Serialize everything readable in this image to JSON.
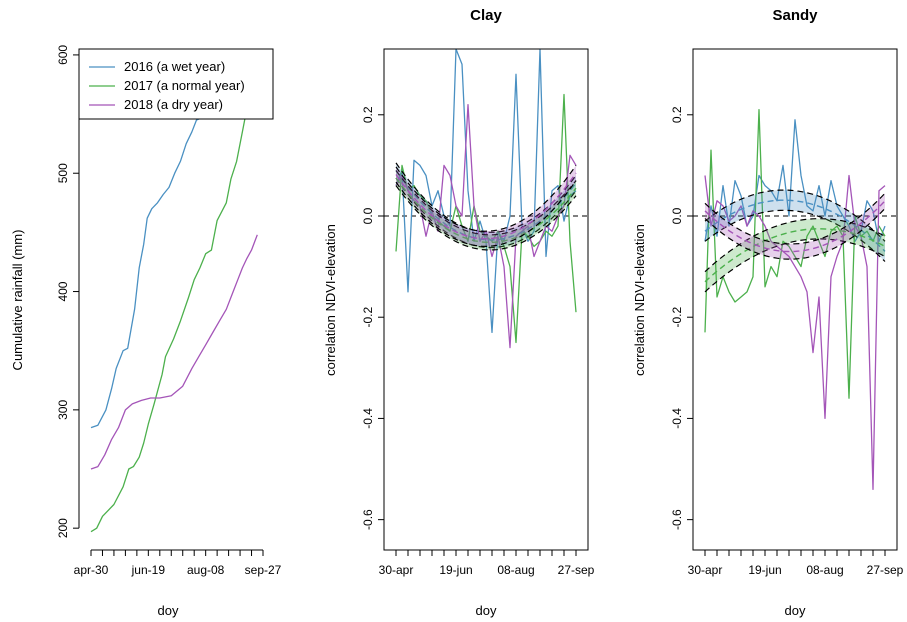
{
  "chart_data": [
    {
      "type": "line",
      "title": "",
      "xlabel": "doy",
      "ylabel": "Cumulative rainfall (mm)",
      "ylim": [
        190,
        605
      ],
      "xlim": [
        0,
        150
      ],
      "xticklabels": [
        "apr-30",
        "jun-19",
        "aug-08",
        "sep-27"
      ],
      "xticklabel_positions": [
        0,
        50,
        100,
        150
      ],
      "xminor_step": 10,
      "yticks": [
        200,
        300,
        400,
        500,
        600
      ],
      "legend": "top-left",
      "series": [
        {
          "name": "2016 (a wet year)",
          "color": "#4a90c2",
          "x": [
            0,
            6,
            13,
            18,
            22,
            28,
            32,
            38,
            42,
            46,
            49,
            53,
            58,
            63,
            68,
            73,
            78,
            83,
            88,
            92,
            97,
            102,
            108,
            113
          ],
          "y": [
            285,
            287,
            300,
            318,
            335,
            350,
            352,
            385,
            420,
            440,
            462,
            470,
            475,
            482,
            488,
            500,
            510,
            525,
            535,
            545,
            547,
            560,
            580,
            600
          ]
        },
        {
          "name": "2017 (a normal year)",
          "color": "#4cb04c",
          "x": [
            0,
            5,
            10,
            15,
            20,
            28,
            33,
            37,
            42,
            46,
            50,
            55,
            62,
            65,
            72,
            78,
            85,
            90,
            95,
            100,
            105,
            110,
            118,
            122,
            127,
            132,
            135,
            140
          ],
          "y": [
            197,
            200,
            210,
            215,
            220,
            235,
            250,
            252,
            260,
            272,
            288,
            305,
            330,
            345,
            360,
            375,
            395,
            410,
            420,
            432,
            435,
            460,
            475,
            495,
            510,
            535,
            550,
            550
          ]
        },
        {
          "name": "2018 (a dry year)",
          "color": "#a455b8",
          "x": [
            0,
            6,
            12,
            18,
            24,
            30,
            36,
            44,
            52,
            60,
            70,
            80,
            88,
            94,
            100,
            106,
            112,
            118,
            124,
            128,
            132,
            136,
            140,
            145
          ],
          "y": [
            250,
            252,
            262,
            275,
            285,
            300,
            305,
            308,
            310,
            310,
            312,
            320,
            335,
            345,
            355,
            365,
            375,
            385,
            400,
            410,
            420,
            428,
            435,
            448
          ]
        }
      ]
    },
    {
      "type": "line",
      "title": "Clay",
      "xlabel": "doy",
      "ylabel": "correlation NDVI-elevation",
      "ylim": [
        -0.66,
        0.33
      ],
      "xlim": [
        0,
        150
      ],
      "xticklabels": [
        "30-apr",
        "19-jun",
        "08-aug",
        "27-sep"
      ],
      "xticklabel_positions": [
        0,
        50,
        100,
        150
      ],
      "xminor_step": 10,
      "yticks": [
        0.2,
        0.0,
        -0.2,
        -0.4,
        -0.6
      ],
      "yticklabels": [
        "0.2",
        "0.0",
        "-0.2",
        "-0.4",
        "-0.6"
      ],
      "zero_line": true,
      "series": [
        {
          "name": "",
          "color": "#4a90c2",
          "x": [
            0,
            5,
            10,
            15,
            20,
            25,
            30,
            35,
            40,
            45,
            50,
            55,
            60,
            65,
            70,
            75,
            80,
            85,
            90,
            95,
            100,
            105,
            110,
            115,
            120,
            125,
            130,
            135,
            140,
            145,
            150
          ],
          "y": [
            0.06,
            0.09,
            -0.15,
            0.11,
            0.1,
            0.08,
            0.02,
            0.05,
            0.0,
            -0.02,
            0.33,
            0.3,
            0.05,
            -0.05,
            -0.01,
            -0.05,
            -0.23,
            -0.03,
            -0.05,
            0.0,
            0.28,
            -0.02,
            -0.05,
            -0.03,
            0.33,
            -0.08,
            0.05,
            0.06,
            -0.01,
            0.04,
            0.05
          ]
        },
        {
          "name": "",
          "color": "#4cb04c",
          "x": [
            0,
            5,
            10,
            15,
            20,
            25,
            30,
            35,
            40,
            45,
            50,
            55,
            60,
            65,
            70,
            75,
            80,
            85,
            90,
            95,
            100,
            105,
            110,
            115,
            120,
            125,
            130,
            135,
            140,
            145,
            150
          ],
          "y": [
            -0.07,
            0.1,
            0.05,
            0.06,
            0.04,
            0.03,
            0.0,
            -0.01,
            -0.02,
            -0.03,
            0.02,
            -0.02,
            -0.05,
            0.02,
            -0.03,
            -0.04,
            -0.05,
            -0.03,
            -0.06,
            -0.1,
            -0.25,
            -0.03,
            -0.04,
            -0.06,
            -0.05,
            -0.03,
            -0.04,
            -0.02,
            0.24,
            -0.05,
            -0.19
          ]
        },
        {
          "name": "",
          "color": "#a455b8",
          "x": [
            0,
            5,
            10,
            15,
            20,
            25,
            30,
            35,
            40,
            45,
            50,
            55,
            60,
            65,
            70,
            75,
            80,
            85,
            90,
            95,
            100,
            105,
            110,
            115,
            120,
            125,
            130,
            135,
            140,
            145,
            150
          ],
          "y": [
            0.06,
            0.08,
            0.05,
            0.03,
            0.02,
            -0.04,
            0.01,
            -0.03,
            0.1,
            0.08,
            0.02,
            0.0,
            0.22,
            0.02,
            -0.05,
            -0.03,
            -0.08,
            -0.04,
            -0.1,
            -0.26,
            -0.04,
            -0.03,
            -0.02,
            -0.08,
            -0.05,
            -0.02,
            -0.03,
            0.0,
            0.02,
            0.12,
            0.1
          ]
        }
      ],
      "fits": [
        {
          "color": "#4a90c2",
          "fill": "rgba(74,144,194,0.28)",
          "center": [
            0.09,
            -0.047,
            0.065
          ],
          "band": 0.015
        },
        {
          "color": "#4cb04c",
          "fill": "rgba(76,176,76,0.28)",
          "center": [
            0.075,
            -0.052,
            0.055
          ],
          "band": 0.015
        },
        {
          "color": "#a455b8",
          "fill": "rgba(164,85,184,0.28)",
          "center": [
            0.082,
            -0.045,
            0.085
          ],
          "band": 0.015
        }
      ]
    },
    {
      "type": "line",
      "title": "Sandy",
      "xlabel": "doy",
      "ylabel": "correlation NDVI-elevation",
      "ylim": [
        -0.66,
        0.33
      ],
      "xlim": [
        0,
        150
      ],
      "xticklabels": [
        "30-apr",
        "19-jun",
        "08-aug",
        "27-sep"
      ],
      "xticklabel_positions": [
        0,
        50,
        100,
        150
      ],
      "xminor_step": 10,
      "yticks": [
        0.2,
        0.0,
        -0.2,
        -0.4,
        -0.6
      ],
      "yticklabels": [
        "0.2",
        "0.0",
        "-0.2",
        "-0.4",
        "-0.6"
      ],
      "zero_line": true,
      "series": [
        {
          "name": "",
          "color": "#4a90c2",
          "x": [
            0,
            5,
            10,
            15,
            20,
            25,
            30,
            35,
            40,
            45,
            50,
            55,
            60,
            65,
            70,
            75,
            80,
            85,
            90,
            95,
            100,
            105,
            110,
            115,
            120,
            125,
            130,
            135,
            140,
            145,
            150
          ],
          "y": [
            -0.05,
            0.02,
            -0.04,
            0.06,
            -0.02,
            0.07,
            0.04,
            -0.02,
            0.0,
            0.08,
            0.06,
            0.05,
            0.03,
            0.1,
            0.0,
            0.19,
            0.08,
            0.02,
            0.01,
            0.06,
            0.0,
            0.07,
            0.02,
            0.0,
            -0.02,
            -0.05,
            -0.03,
            0.03,
            0.01,
            -0.05,
            -0.02
          ]
        },
        {
          "name": "",
          "color": "#4cb04c",
          "x": [
            0,
            5,
            10,
            15,
            20,
            25,
            30,
            35,
            40,
            45,
            50,
            55,
            60,
            65,
            70,
            75,
            80,
            85,
            90,
            95,
            100,
            105,
            110,
            115,
            120,
            125,
            130,
            135,
            140,
            145,
            150
          ],
          "y": [
            -0.23,
            0.13,
            -0.16,
            -0.12,
            -0.15,
            -0.17,
            -0.16,
            -0.15,
            -0.12,
            0.21,
            -0.14,
            -0.1,
            -0.12,
            -0.05,
            -0.06,
            -0.08,
            -0.1,
            -0.04,
            -0.02,
            -0.05,
            -0.08,
            -0.03,
            -0.02,
            -0.04,
            -0.36,
            0.0,
            -0.04,
            -0.03,
            -0.05,
            -0.02,
            -0.04
          ]
        },
        {
          "name": "",
          "color": "#a455b8",
          "x": [
            0,
            5,
            10,
            15,
            20,
            25,
            30,
            35,
            40,
            45,
            50,
            55,
            60,
            65,
            70,
            75,
            80,
            85,
            90,
            95,
            100,
            105,
            110,
            115,
            120,
            125,
            130,
            135,
            140,
            145,
            150
          ],
          "y": [
            0.08,
            -0.02,
            0.03,
            0.02,
            -0.01,
            0.0,
            0.02,
            -0.02,
            0.01,
            0.0,
            -0.02,
            -0.05,
            -0.06,
            -0.07,
            -0.08,
            -0.1,
            -0.12,
            -0.15,
            -0.27,
            -0.16,
            -0.4,
            -0.12,
            -0.08,
            -0.05,
            0.08,
            -0.02,
            -0.04,
            -0.1,
            -0.54,
            0.05,
            0.06
          ]
        }
      ],
      "fits": [
        {
          "color": "#4a90c2",
          "fill": "rgba(74,144,194,0.28)",
          "center": [
            -0.03,
            0.03,
            -0.07
          ],
          "band": 0.02
        },
        {
          "color": "#4cb04c",
          "fill": "rgba(76,176,76,0.28)",
          "center": [
            -0.13,
            -0.03,
            -0.06
          ],
          "band": 0.02
        },
        {
          "color": "#a455b8",
          "fill": "rgba(164,85,184,0.28)",
          "center": [
            0.01,
            -0.07,
            0.03
          ],
          "band": 0.015
        }
      ]
    }
  ]
}
